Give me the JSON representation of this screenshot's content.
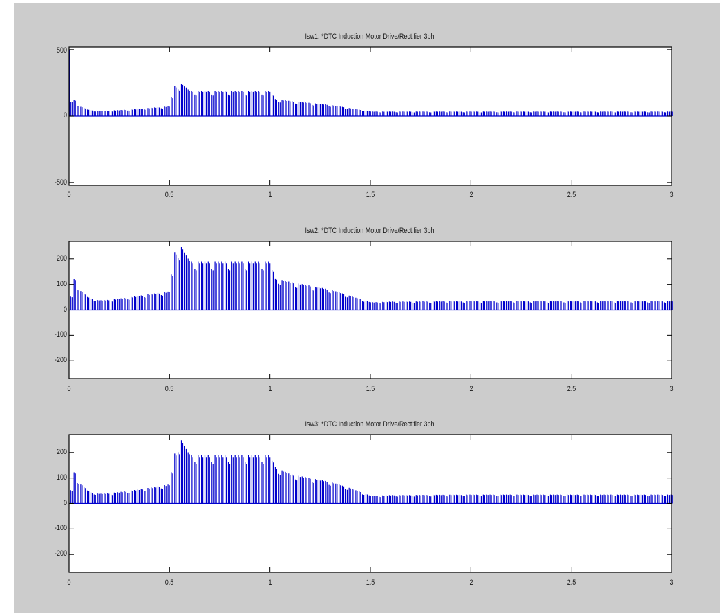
{
  "figure": {
    "background": "#cccccc",
    "axes_background": "#ffffff",
    "line_color": "#0000cc"
  },
  "chart_data": [
    {
      "type": "line",
      "title": "Isw1: *DTC Induction Motor Drive/Rectifier 3ph",
      "xlabel": "",
      "ylabel": "",
      "xlim": [
        0,
        3
      ],
      "ylim": [
        -520,
        520
      ],
      "xticks": [
        "0",
        "0.5",
        "1",
        "1.5",
        "2",
        "2.5",
        "3"
      ],
      "yticks": [
        "-500",
        "0",
        "500"
      ],
      "grid": false,
      "description": "Pulsed switch current (spikes from 0 to envelope value)",
      "envelope": {
        "x": [
          0,
          0.003,
          0.02,
          0.05,
          0.1,
          0.15,
          0.2,
          0.3,
          0.4,
          0.5,
          0.52,
          0.54,
          0.56,
          0.6,
          0.8,
          1.0,
          1.02,
          1.1,
          1.2,
          1.3,
          1.4,
          1.5,
          1.6,
          2.0,
          2.5,
          3.0
        ],
        "y": [
          500,
          100,
          130,
          75,
          45,
          40,
          42,
          50,
          62,
          75,
          220,
          235,
          245,
          190,
          190,
          190,
          130,
          115,
          100,
          85,
          60,
          35,
          35,
          35,
          35,
          35
        ]
      }
    },
    {
      "type": "line",
      "title": "Isw2: *DTC Induction Motor Drive/Rectifier 3ph",
      "xlabel": "",
      "ylabel": "",
      "xlim": [
        0,
        3
      ],
      "ylim": [
        -270,
        270
      ],
      "xticks": [
        "0",
        "0.5",
        "1",
        "1.5",
        "2",
        "2.5",
        "3"
      ],
      "yticks": [
        "-200",
        "-100",
        "0",
        "100",
        "200"
      ],
      "grid": false,
      "envelope": {
        "x": [
          0,
          0.02,
          0.05,
          0.1,
          0.15,
          0.2,
          0.3,
          0.4,
          0.5,
          0.52,
          0.54,
          0.56,
          0.6,
          0.8,
          1.0,
          1.02,
          1.1,
          1.2,
          1.3,
          1.4,
          1.5,
          1.6,
          2.0,
          2.5,
          3.0
        ],
        "y": [
          0,
          130,
          80,
          45,
          38,
          40,
          50,
          62,
          73,
          220,
          240,
          247,
          190,
          190,
          190,
          125,
          110,
          95,
          80,
          55,
          30,
          33,
          35,
          35,
          35
        ]
      }
    },
    {
      "type": "line",
      "title": "Isw3: *DTC Induction Motor Drive/Rectifier 3ph",
      "xlabel": "",
      "ylabel": "",
      "xlim": [
        0,
        3
      ],
      "ylim": [
        -270,
        270
      ],
      "xticks": [
        "0",
        "0.5",
        "1",
        "1.5",
        "2",
        "2.5",
        "3"
      ],
      "yticks": [
        "-200",
        "-100",
        "0",
        "100",
        "200"
      ],
      "grid": false,
      "envelope": {
        "x": [
          0,
          0.02,
          0.05,
          0.1,
          0.15,
          0.2,
          0.3,
          0.4,
          0.5,
          0.52,
          0.54,
          0.56,
          0.6,
          0.8,
          1.0,
          1.02,
          1.1,
          1.2,
          1.3,
          1.4,
          1.5,
          1.6,
          2.0,
          2.5,
          3.0
        ],
        "y": [
          0,
          130,
          80,
          45,
          38,
          40,
          50,
          62,
          75,
          180,
          235,
          248,
          190,
          190,
          190,
          145,
          115,
          100,
          85,
          60,
          30,
          33,
          35,
          35,
          35
        ]
      }
    }
  ]
}
